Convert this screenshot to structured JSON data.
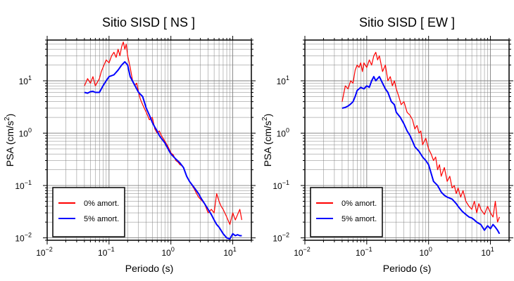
{
  "chart_data": [
    {
      "type": "line",
      "title": "Sitio SISD [ NS ]",
      "xlabel": "Periodo (s)",
      "ylabel_main": "PSA (cm/s",
      "ylabel_sup": "2",
      "ylabel_tail": ")",
      "xscale": "log",
      "yscale": "log",
      "xlim": [
        0.01,
        20
      ],
      "ylim": [
        0.009,
        60
      ],
      "grid": true,
      "legend_position": "bottom-left",
      "x_ticks": [
        {
          "base": "10",
          "exp": "−2"
        },
        {
          "base": "10",
          "exp": "−1"
        },
        {
          "base": "10",
          "exp": "0"
        },
        {
          "base": "10",
          "exp": "1"
        }
      ],
      "y_ticks": [
        {
          "base": "10",
          "exp": "−2"
        },
        {
          "base": "10",
          "exp": "−1"
        },
        {
          "base": "10",
          "exp": "0"
        },
        {
          "base": "10",
          "exp": "1"
        }
      ],
      "series": [
        {
          "name": "0% amort.",
          "color": "#ff0000",
          "x": [
            0.04,
            0.045,
            0.05,
            0.055,
            0.06,
            0.07,
            0.075,
            0.08,
            0.09,
            0.1,
            0.11,
            0.12,
            0.13,
            0.14,
            0.15,
            0.16,
            0.17,
            0.18,
            0.19,
            0.2,
            0.22,
            0.24,
            0.26,
            0.28,
            0.3,
            0.32,
            0.35,
            0.4,
            0.45,
            0.5,
            0.55,
            0.6,
            0.65,
            0.7,
            0.75,
            0.8,
            0.9,
            1.0,
            1.1,
            1.2,
            1.3,
            1.4,
            1.5,
            1.6,
            1.8,
            2.0,
            2.2,
            2.4,
            2.6,
            2.8,
            3.0,
            3.5,
            4.0,
            4.5,
            5.0,
            5.5,
            6.0,
            6.5,
            7.0,
            8.0,
            9.0,
            10.0,
            11.0,
            12.0,
            13.0,
            14.0
          ],
          "y": [
            8,
            11,
            9,
            12,
            8,
            11,
            15,
            18,
            25,
            22,
            30,
            35,
            28,
            40,
            30,
            45,
            55,
            40,
            50,
            30,
            18,
            10,
            8,
            9,
            6,
            4.5,
            3.5,
            2.5,
            1.8,
            2.0,
            1.2,
            1.0,
            1.1,
            0.9,
            0.8,
            0.7,
            0.55,
            0.42,
            0.38,
            0.3,
            0.28,
            0.25,
            0.24,
            0.22,
            0.15,
            0.12,
            0.1,
            0.085,
            0.07,
            0.06,
            0.055,
            0.045,
            0.03,
            0.035,
            0.03,
            0.07,
            0.05,
            0.04,
            0.035,
            0.025,
            0.018,
            0.03,
            0.022,
            0.028,
            0.035,
            0.022
          ]
        },
        {
          "name": "5% amort.",
          "color": "#0000ff",
          "x": [
            0.04,
            0.045,
            0.05,
            0.055,
            0.06,
            0.07,
            0.08,
            0.09,
            0.1,
            0.12,
            0.14,
            0.16,
            0.18,
            0.2,
            0.22,
            0.25,
            0.28,
            0.3,
            0.35,
            0.4,
            0.45,
            0.5,
            0.55,
            0.6,
            0.65,
            0.7,
            0.8,
            0.9,
            1.0,
            1.2,
            1.4,
            1.6,
            1.8,
            2.0,
            2.4,
            2.8,
            3.0,
            3.5,
            4.0,
            4.5,
            5.0,
            5.5,
            6.0,
            7.0,
            8.0,
            9.0,
            10.0,
            11.0,
            12.0,
            13.0,
            14.0
          ],
          "y": [
            6,
            5.8,
            6.2,
            6.3,
            6,
            6,
            8,
            10,
            12,
            13,
            16,
            20,
            23,
            20,
            12,
            9,
            7,
            6,
            5,
            3,
            2.2,
            1.6,
            1.3,
            1.1,
            0.9,
            0.8,
            0.65,
            0.5,
            0.4,
            0.32,
            0.27,
            0.22,
            0.15,
            0.12,
            0.09,
            0.07,
            0.06,
            0.045,
            0.035,
            0.028,
            0.022,
            0.018,
            0.016,
            0.012,
            0.01,
            0.0095,
            0.012,
            0.011,
            0.0115,
            0.011,
            0.011
          ]
        }
      ]
    },
    {
      "type": "line",
      "title": "Sitio SISD [ EW ]",
      "xlabel": "Periodo (s)",
      "ylabel_main": "PSA (cm/s",
      "ylabel_sup": "2",
      "ylabel_tail": ")",
      "xscale": "log",
      "yscale": "log",
      "xlim": [
        0.01,
        20
      ],
      "ylim": [
        0.009,
        60
      ],
      "grid": true,
      "legend_position": "bottom-left",
      "x_ticks": [
        {
          "base": "10",
          "exp": "−2"
        },
        {
          "base": "10",
          "exp": "−1"
        },
        {
          "base": "10",
          "exp": "0"
        },
        {
          "base": "10",
          "exp": "1"
        }
      ],
      "y_ticks": [
        {
          "base": "10",
          "exp": "−2"
        },
        {
          "base": "10",
          "exp": "−1"
        },
        {
          "base": "10",
          "exp": "0"
        },
        {
          "base": "10",
          "exp": "1"
        }
      ],
      "series": [
        {
          "name": "0% amort.",
          "color": "#ff0000",
          "x": [
            0.04,
            0.045,
            0.05,
            0.055,
            0.06,
            0.065,
            0.07,
            0.075,
            0.08,
            0.085,
            0.09,
            0.1,
            0.11,
            0.12,
            0.13,
            0.14,
            0.15,
            0.16,
            0.18,
            0.2,
            0.22,
            0.24,
            0.26,
            0.28,
            0.3,
            0.33,
            0.36,
            0.4,
            0.45,
            0.5,
            0.55,
            0.6,
            0.65,
            0.7,
            0.75,
            0.8,
            0.9,
            1.0,
            1.1,
            1.2,
            1.3,
            1.4,
            1.5,
            1.6,
            1.8,
            2.0,
            2.2,
            2.4,
            2.6,
            2.8,
            3.0,
            3.3,
            3.6,
            4.0,
            4.5,
            5.0,
            5.5,
            6.0,
            6.5,
            7.0,
            8.0,
            9.0,
            10.0,
            11.0,
            12.0,
            13.0,
            14.0
          ],
          "y": [
            4,
            8,
            7,
            10,
            9,
            16,
            20,
            18,
            22,
            15,
            22,
            18,
            25,
            20,
            30,
            35,
            25,
            30,
            15,
            20,
            10,
            12,
            8,
            10,
            7,
            5,
            3.5,
            4,
            2.5,
            2.2,
            1.8,
            1.2,
            1.4,
            1.0,
            1.1,
            0.6,
            0.8,
            0.5,
            0.4,
            0.3,
            0.35,
            0.2,
            0.25,
            0.15,
            0.22,
            0.12,
            0.15,
            0.09,
            0.1,
            0.07,
            0.09,
            0.06,
            0.08,
            0.05,
            0.04,
            0.035,
            0.05,
            0.03,
            0.045,
            0.035,
            0.028,
            0.04,
            0.03,
            0.025,
            0.05,
            0.02,
            0.025
          ]
        },
        {
          "name": "5% amort.",
          "color": "#0000ff",
          "x": [
            0.04,
            0.045,
            0.05,
            0.055,
            0.06,
            0.065,
            0.07,
            0.075,
            0.08,
            0.09,
            0.1,
            0.11,
            0.12,
            0.13,
            0.14,
            0.15,
            0.16,
            0.18,
            0.2,
            0.22,
            0.25,
            0.28,
            0.3,
            0.35,
            0.4,
            0.45,
            0.5,
            0.55,
            0.6,
            0.7,
            0.8,
            0.9,
            1.0,
            1.2,
            1.4,
            1.6,
            1.8,
            2.0,
            2.4,
            2.8,
            3.0,
            3.5,
            4.0,
            4.5,
            5.0,
            5.5,
            6.0,
            7.0,
            8.0,
            9.0,
            10.0,
            11.0,
            12.0,
            13.0,
            14.0
          ],
          "y": [
            3,
            3.1,
            3.3,
            3.6,
            4,
            5,
            6.5,
            7,
            7.5,
            7,
            8,
            7.5,
            10,
            12,
            10,
            11,
            12,
            9,
            7,
            6,
            4,
            3.5,
            2.5,
            2.0,
            1.5,
            1.1,
            0.9,
            0.7,
            0.55,
            0.45,
            0.35,
            0.3,
            0.25,
            0.12,
            0.1,
            0.075,
            0.065,
            0.06,
            0.055,
            0.045,
            0.04,
            0.032,
            0.028,
            0.025,
            0.024,
            0.022,
            0.02,
            0.018,
            0.014,
            0.017,
            0.015,
            0.018,
            0.016,
            0.014,
            0.012
          ]
        }
      ]
    }
  ]
}
